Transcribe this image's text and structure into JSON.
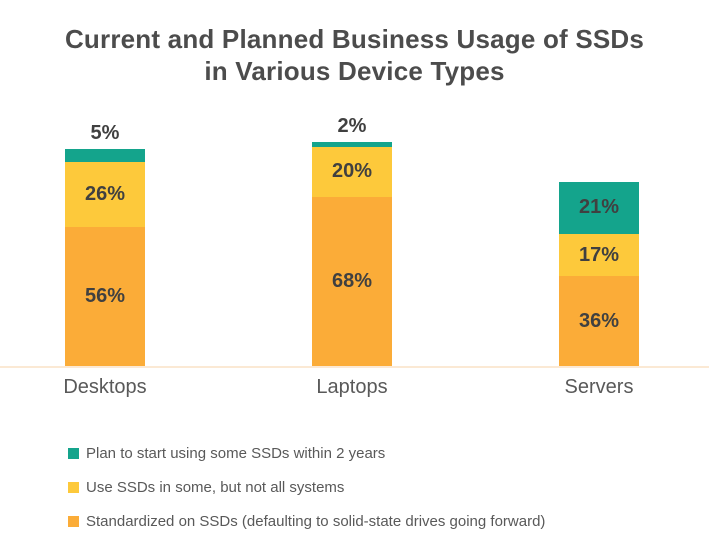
{
  "chart_data": {
    "type": "bar",
    "stacked": true,
    "title": "Current and Planned Business Usage of SSDs in Various Device Types",
    "categories": [
      "Desktops",
      "Laptops",
      "Servers"
    ],
    "series": [
      {
        "name": "Plan to start using some SSDs within 2 years",
        "color": "#14a48c",
        "values": [
          5,
          2,
          21
        ]
      },
      {
        "name": "Use SSDs in some, but not all systems",
        "color": "#fdc93b",
        "values": [
          26,
          20,
          17
        ]
      },
      {
        "name": "Standardized on SSDs (defaulting to solid-state drives going forward)",
        "color": "#fbac38",
        "values": [
          56,
          68,
          36
        ]
      }
    ],
    "value_suffix": "%",
    "data_labels": true,
    "legend_position": "bottom-left",
    "grid": false,
    "y_axis_visible": false,
    "x_axis_line_color": "#fbe9d4",
    "label_color": "#404040",
    "category_label_color": "#595959",
    "title_color": "#4c4c4c",
    "background": "#ffffff"
  }
}
